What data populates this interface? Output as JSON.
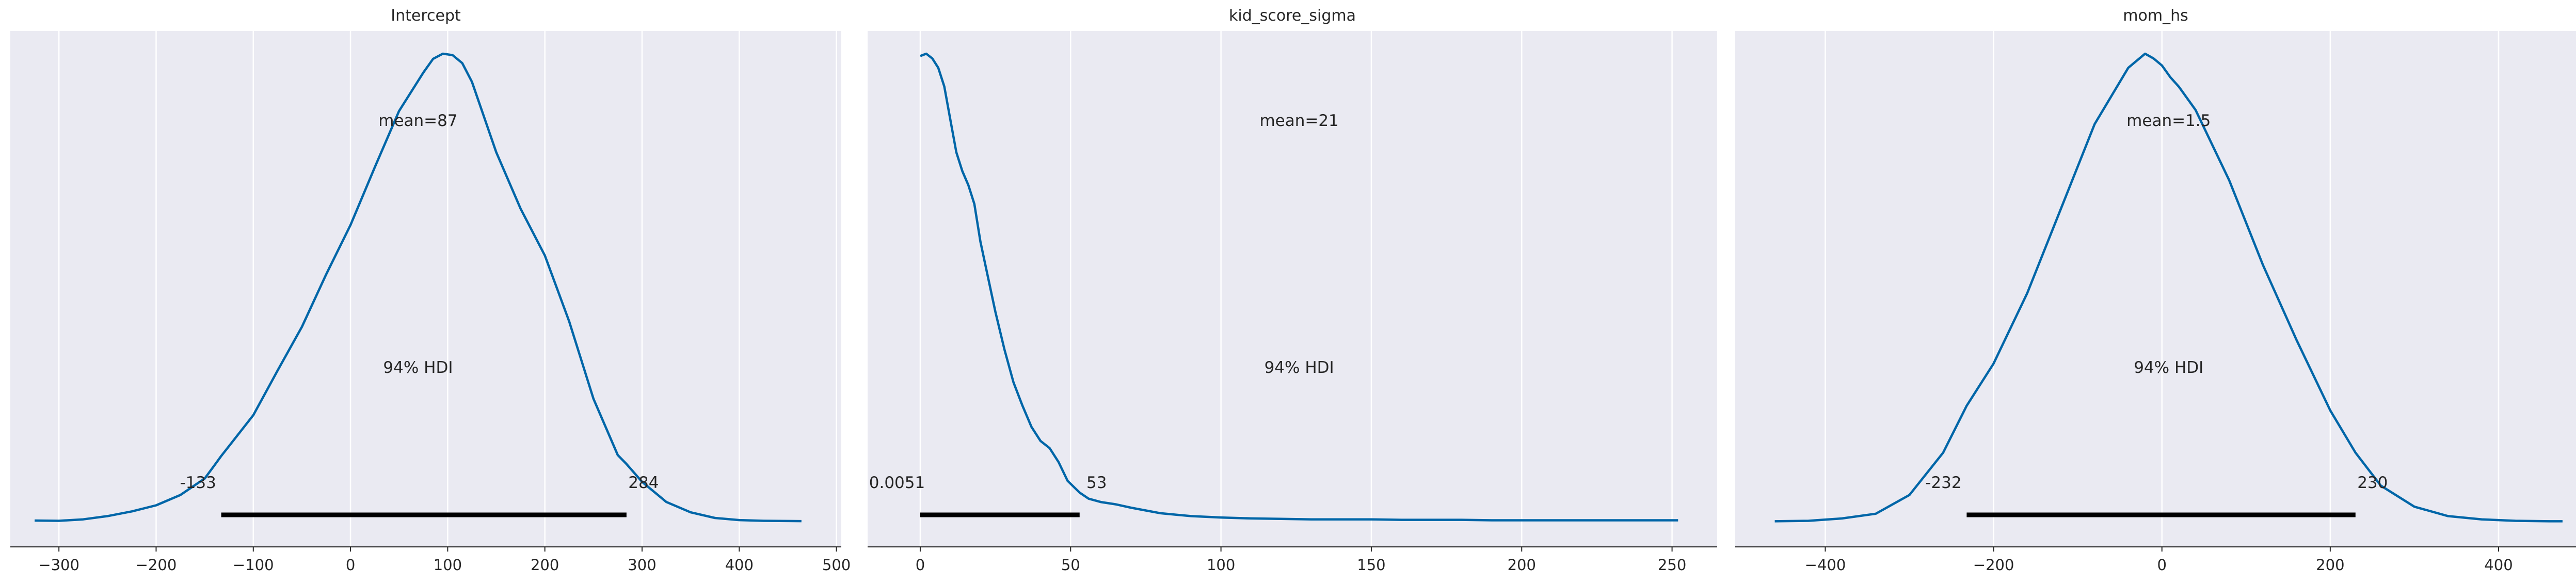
{
  "chart_data": [
    {
      "type": "area",
      "title": "Intercept",
      "xlim": [
        -350,
        505
      ],
      "ticks": [
        -300,
        -200,
        -100,
        0,
        100,
        200,
        300,
        400,
        500
      ],
      "tick_labels": [
        "−300",
        "−200",
        "−100",
        "0",
        "100",
        "200",
        "300",
        "400",
        "500"
      ],
      "mean_label": "mean=87",
      "hdi_label": "94% HDI",
      "hdi": [
        -133,
        284
      ],
      "hdi_low_label": "-133",
      "hdi_high_label": "284",
      "density": {
        "x": [
          -325,
          -300,
          -275,
          -250,
          -225,
          -200,
          -175,
          -150,
          -140,
          -133,
          -125,
          -100,
          -75,
          -50,
          -25,
          0,
          25,
          50,
          75,
          85,
          95,
          105,
          115,
          125,
          150,
          175,
          200,
          225,
          250,
          275,
          284,
          300,
          325,
          350,
          375,
          400,
          425,
          450,
          464
        ],
        "y": [
          0.0055,
          0.005,
          0.008,
          0.015,
          0.025,
          0.038,
          0.06,
          0.095,
          0.123,
          0.143,
          0.164,
          0.23,
          0.325,
          0.418,
          0.53,
          0.635,
          0.758,
          0.878,
          0.96,
          0.989,
          1.0,
          0.997,
          0.98,
          0.94,
          0.79,
          0.67,
          0.57,
          0.43,
          0.265,
          0.145,
          0.126,
          0.088,
          0.045,
          0.023,
          0.011,
          0.0065,
          0.005,
          0.0045,
          0.0043
        ]
      }
    },
    {
      "type": "area",
      "title": "kid_score_sigma",
      "xlim": [
        -17.5,
        265
      ],
      "ticks": [
        0,
        50,
        100,
        150,
        200,
        250
      ],
      "tick_labels": [
        "0",
        "50",
        "100",
        "150",
        "200",
        "250"
      ],
      "mean_label": "mean=21",
      "hdi_label": "94% HDI",
      "hdi": [
        0.0051,
        53
      ],
      "hdi_low_label": "0.0051",
      "hdi_high_label": "53",
      "density": {
        "x": [
          0,
          2,
          4,
          6,
          8,
          10,
          12,
          14,
          16,
          18,
          20,
          22,
          25,
          28,
          31,
          34,
          37,
          40,
          43,
          46,
          49,
          53,
          56,
          60,
          65,
          70,
          75,
          80,
          90,
          100,
          110,
          120,
          130,
          140,
          150,
          160,
          170,
          180,
          190,
          200,
          210,
          220,
          230,
          240,
          252
        ],
        "y": [
          0.995,
          1.0,
          0.99,
          0.97,
          0.93,
          0.86,
          0.79,
          0.75,
          0.72,
          0.68,
          0.6,
          0.54,
          0.45,
          0.37,
          0.3,
          0.25,
          0.205,
          0.175,
          0.16,
          0.13,
          0.09,
          0.065,
          0.052,
          0.045,
          0.04,
          0.033,
          0.027,
          0.021,
          0.015,
          0.012,
          0.01,
          0.009,
          0.008,
          0.008,
          0.008,
          0.007,
          0.007,
          0.007,
          0.006,
          0.006,
          0.006,
          0.006,
          0.006,
          0.006,
          0.006
        ]
      }
    },
    {
      "type": "area",
      "title": "mom_hs",
      "xlim": [
        -507,
        492
      ],
      "ticks": [
        -400,
        -200,
        0,
        200,
        400
      ],
      "tick_labels": [
        "−400",
        "−200",
        "0",
        "200",
        "400"
      ],
      "mean_label": "mean=1.5",
      "hdi_label": "94% HDI",
      "hdi": [
        -232,
        230
      ],
      "hdi_low_label": "-232",
      "hdi_high_label": "230",
      "density": {
        "x": [
          -460,
          -420,
          -380,
          -340,
          -300,
          -260,
          -232,
          -200,
          -160,
          -120,
          -80,
          -40,
          -20,
          -10,
          0,
          10,
          20,
          40,
          80,
          120,
          160,
          200,
          230,
          260,
          300,
          340,
          380,
          420,
          460,
          476
        ],
        "y": [
          0.004,
          0.005,
          0.01,
          0.02,
          0.06,
          0.15,
          0.25,
          0.34,
          0.49,
          0.67,
          0.85,
          0.97,
          1.0,
          0.99,
          0.975,
          0.95,
          0.93,
          0.88,
          0.73,
          0.55,
          0.39,
          0.24,
          0.15,
          0.08,
          0.035,
          0.015,
          0.008,
          0.005,
          0.004,
          0.004
        ]
      }
    }
  ],
  "colors": {
    "curve": "#0066a8",
    "panel_bg": "#eaeaf2",
    "grid": "#ffffff",
    "hdi_bar": "#000000",
    "axis": "#262626",
    "text": "#262626"
  }
}
